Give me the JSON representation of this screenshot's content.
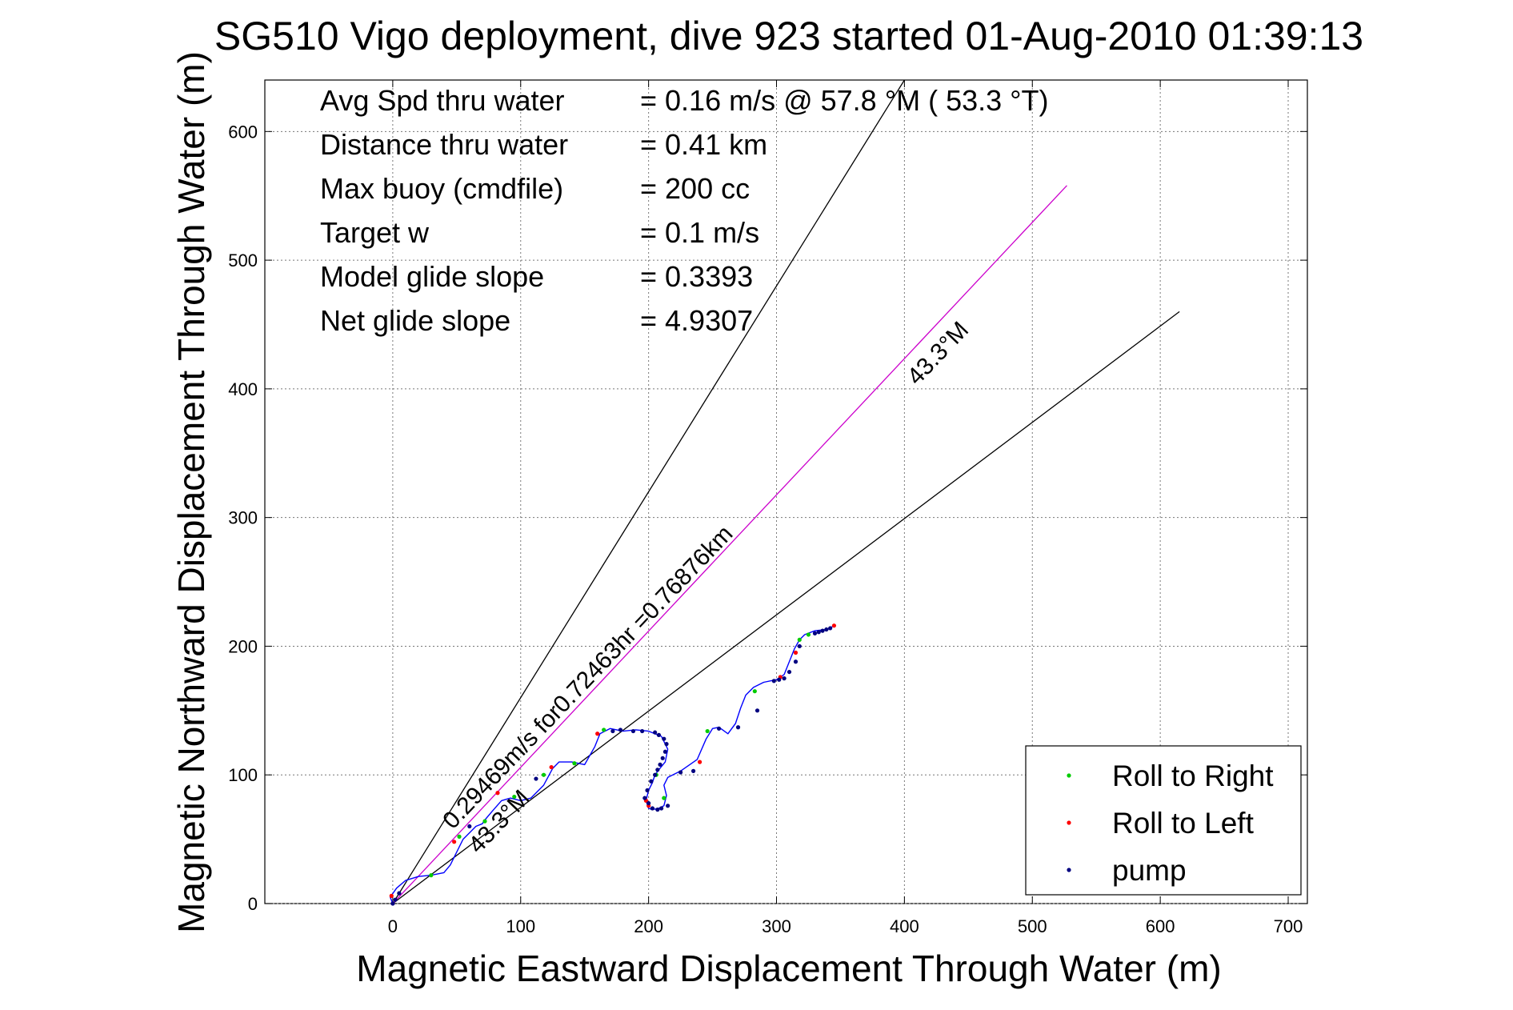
{
  "chart_data": {
    "type": "line",
    "title": "SG510 Vigo deployment, dive 923 started 01-Aug-2010 01:39:13",
    "xlabel": "Magnetic Eastward Displacement Through Water (m)",
    "ylabel": "Magnetic Northward Displacement Through Water (m)",
    "xlim": [
      -100,
      715
    ],
    "ylim": [
      0,
      640
    ],
    "xticks": [
      0,
      100,
      200,
      300,
      400,
      500,
      600,
      700
    ],
    "yticks": [
      0,
      100,
      200,
      300,
      400,
      500,
      600
    ],
    "grid": true,
    "legend_position": "bottom-right",
    "stats": [
      {
        "label": "Avg Spd thru water",
        "value": "=  0.16 m/s @  57.8 °M ( 53.3 °T)"
      },
      {
        "label": "Distance thru water",
        "value": "=  0.41 km"
      },
      {
        "label": "Max buoy (cmdfile)",
        "value": "= 200 cc"
      },
      {
        "label": "Target w",
        "value": "= 0.1 m/s"
      },
      {
        "label": "Model glide slope",
        "value": "= 0.3393"
      },
      {
        "label": "Net glide slope",
        "value": "= 4.9307"
      }
    ],
    "legend": [
      {
        "name": "Roll to Right",
        "color": "#00cc00"
      },
      {
        "name": "Roll to Left",
        "color": "#ff0000"
      },
      {
        "name": "pump",
        "color": "#000080"
      }
    ],
    "reference_lines": [
      {
        "from": [
          0,
          0
        ],
        "to": [
          400,
          640
        ],
        "color": "#000000"
      },
      {
        "from": [
          0,
          0
        ],
        "to": [
          615,
          460
        ],
        "color": "#000000"
      },
      {
        "from": [
          0,
          0
        ],
        "to": [
          527,
          558
        ],
        "color": "#cc00cc"
      }
    ],
    "annotations": [
      {
        "text": "0.29469m/s for0.72463hr =0.76876km",
        "x": 47,
        "y": 57,
        "angle_deg": -46.4
      },
      {
        "text": "43.3°M",
        "x": 67,
        "y": 38,
        "angle_deg": -46.4
      },
      {
        "text": "43.3°M",
        "x": 410,
        "y": 402,
        "angle_deg": -46.4
      }
    ],
    "series": [
      {
        "type": "track",
        "color": "#0000ff",
        "x": [
          0,
          -2,
          3,
          10,
          20,
          30,
          40,
          45,
          50,
          55,
          60,
          65,
          70,
          72,
          78,
          85,
          92,
          100,
          108,
          118,
          125,
          130,
          140,
          150,
          158,
          162,
          170,
          180,
          190,
          200,
          210,
          215,
          213,
          208,
          205,
          203,
          200,
          198,
          200,
          203,
          208,
          212,
          214,
          212,
          215,
          225,
          238,
          245,
          250,
          255,
          262,
          268,
          272,
          276,
          282,
          290,
          300,
          306,
          310,
          314,
          318,
          322,
          330,
          340,
          345
        ],
        "y": [
          0,
          5,
          12,
          18,
          21,
          22,
          24,
          30,
          40,
          50,
          55,
          60,
          62,
          65,
          72,
          80,
          82,
          80,
          82,
          92,
          105,
          110,
          110,
          108,
          122,
          132,
          136,
          134,
          135,
          134,
          130,
          120,
          110,
          104,
          100,
          94,
          88,
          80,
          74,
          73,
          74,
          76,
          84,
          92,
          98,
          103,
          112,
          128,
          136,
          137,
          132,
          140,
          152,
          162,
          168,
          172,
          174,
          178,
          188,
          198,
          205,
          209,
          212,
          213,
          216
        ]
      },
      {
        "type": "scatter",
        "name": "Roll to Right",
        "color": "#00cc00",
        "x": [
          30,
          52,
          72,
          95,
          118,
          142,
          165,
          206,
          212,
          246,
          283,
          318,
          325
        ],
        "y": [
          22,
          52,
          64,
          83,
          100,
          109,
          135,
          100,
          82,
          134,
          165,
          205,
          209
        ]
      },
      {
        "type": "scatter",
        "name": "Roll to Left",
        "color": "#ff0000",
        "x": [
          -1,
          48,
          82,
          124,
          160,
          198,
          200,
          240,
          303,
          315,
          345
        ],
        "y": [
          6,
          48,
          86,
          106,
          132,
          80,
          76,
          110,
          176,
          195,
          216
        ]
      },
      {
        "type": "scatter",
        "name": "pump",
        "color": "#000080",
        "x": [
          0,
          2,
          5,
          60,
          112,
          172,
          178,
          188,
          195,
          205,
          208,
          212,
          214,
          213,
          211,
          209,
          207,
          205,
          202,
          199,
          197,
          200,
          203,
          207,
          210,
          215,
          225,
          235,
          255,
          270,
          285,
          298,
          302,
          306,
          310,
          315,
          318,
          330,
          333,
          336,
          339,
          342
        ],
        "y": [
          0,
          3,
          8,
          60,
          97,
          134,
          135,
          134,
          134,
          133,
          131,
          128,
          124,
          118,
          113,
          108,
          104,
          100,
          95,
          88,
          82,
          78,
          74,
          73,
          74,
          76,
          102,
          103,
          136,
          137,
          150,
          173,
          174,
          175,
          180,
          188,
          200,
          210,
          211,
          212,
          213,
          214
        ]
      }
    ]
  }
}
